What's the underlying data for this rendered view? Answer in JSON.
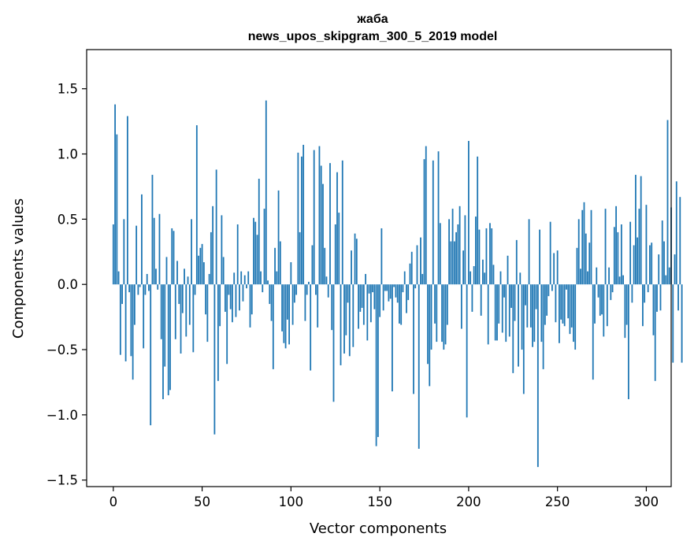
{
  "chart_data": {
    "type": "bar",
    "title_lines": [
      "жаба",
      "news_upos_skipgram_300_5_2019 model"
    ],
    "xlabel": "Vector components",
    "ylabel": "Components values",
    "xlim": [
      -15,
      314
    ],
    "ylim": [
      -1.55,
      1.8
    ],
    "xticks": [
      {
        "value": 0,
        "label": "0"
      },
      {
        "value": 50,
        "label": "50"
      },
      {
        "value": 100,
        "label": "100"
      },
      {
        "value": 150,
        "label": "150"
      },
      {
        "value": 200,
        "label": "200"
      },
      {
        "value": 250,
        "label": "250"
      },
      {
        "value": 300,
        "label": "300"
      }
    ],
    "yticks": [
      {
        "value": -1.5,
        "label": "−1.5"
      },
      {
        "value": -1.0,
        "label": "−1.0"
      },
      {
        "value": -0.5,
        "label": "−0.5"
      },
      {
        "value": 0.0,
        "label": "0.0"
      },
      {
        "value": 0.5,
        "label": "0.5"
      },
      {
        "value": 1.0,
        "label": "1.0"
      },
      {
        "value": 1.5,
        "label": "1.5"
      }
    ],
    "grid": false,
    "bar_color": "#1f77b4",
    "values": [
      0.46,
      1.38,
      1.15,
      0.1,
      -0.54,
      -0.15,
      0.5,
      -0.59,
      1.29,
      -0.06,
      -0.55,
      -0.73,
      -0.31,
      0.45,
      -0.08,
      -0.02,
      0.69,
      -0.49,
      -0.08,
      0.08,
      -0.05,
      -1.08,
      0.84,
      0.51,
      0.12,
      -0.04,
      0.54,
      -0.42,
      -0.88,
      -0.63,
      0.21,
      -0.85,
      -0.81,
      0.43,
      0.41,
      -0.42,
      0.18,
      -0.15,
      -0.53,
      -0.22,
      0.12,
      -0.4,
      0.06,
      -0.31,
      0.5,
      -0.52,
      -0.08,
      1.22,
      0.22,
      0.28,
      0.31,
      0.17,
      -0.23,
      -0.44,
      0.08,
      0.4,
      0.6,
      -1.15,
      0.88,
      -0.74,
      -0.32,
      0.53,
      0.21,
      -0.21,
      -0.61,
      -0.08,
      -0.19,
      -0.29,
      0.09,
      -0.25,
      0.46,
      -0.2,
      0.1,
      -0.13,
      0.07,
      -0.03,
      0.1,
      -0.33,
      -0.23,
      0.51,
      0.48,
      0.38,
      0.81,
      0.1,
      -0.06,
      0.58,
      1.41,
      0.03,
      -0.15,
      -0.28,
      -0.65,
      0.28,
      0.1,
      0.72,
      0.33,
      -0.36,
      -0.45,
      -0.49,
      -0.27,
      -0.46,
      0.17,
      -0.31,
      -0.14,
      -0.08,
      1.01,
      0.4,
      0.98,
      1.07,
      -0.28,
      -0.08,
      0.02,
      -0.66,
      0.3,
      1.03,
      -0.08,
      -0.33,
      1.06,
      0.91,
      0.77,
      0.28,
      0.06,
      -0.1,
      0.93,
      -0.35,
      -0.9,
      0.46,
      0.86,
      0.55,
      -0.62,
      0.95,
      -0.53,
      -0.39,
      -0.14,
      -0.55,
      0.26,
      -0.48,
      0.39,
      0.35,
      -0.34,
      -0.21,
      -0.18,
      -0.31,
      0.08,
      -0.43,
      -0.07,
      -0.29,
      -0.06,
      -0.19,
      -1.24,
      -1.17,
      -0.25,
      0.43,
      -0.2,
      -0.05,
      -0.05,
      -0.13,
      -0.11,
      -0.82,
      -0.02,
      -0.1,
      -0.14,
      -0.3,
      -0.31,
      -0.06,
      0.1,
      -0.22,
      -0.12,
      0.16,
      0.25,
      -0.84,
      -0.03,
      0.3,
      -1.26,
      0.36,
      0.08,
      0.96,
      1.06,
      -0.61,
      -0.78,
      -0.5,
      0.95,
      -0.3,
      -0.44,
      1.02,
      0.47,
      -0.44,
      -0.5,
      -0.46,
      -0.31,
      0.5,
      0.33,
      0.58,
      0.33,
      0.4,
      0.46,
      0.6,
      -0.34,
      0.26,
      0.53,
      -1.02,
      1.1,
      0.1,
      -0.21,
      0.14,
      0.52,
      0.98,
      0.42,
      -0.24,
      0.19,
      0.09,
      0.43,
      -0.46,
      0.47,
      0.43,
      0.15,
      -0.43,
      -0.43,
      -0.3,
      0.1,
      -0.37,
      -0.1,
      -0.44,
      0.22,
      -0.4,
      -0.18,
      -0.68,
      -0.28,
      0.34,
      -0.63,
      0.09,
      -0.5,
      -0.84,
      -0.16,
      -0.33,
      0.5,
      -0.33,
      -0.48,
      -0.44,
      -0.19,
      -1.4,
      0.42,
      -0.44,
      -0.65,
      -0.31,
      -0.24,
      -0.09,
      0.48,
      -0.05,
      0.24,
      -0.29,
      0.26,
      -0.45,
      -0.27,
      -0.3,
      -0.32,
      -0.04,
      -0.26,
      -0.38,
      -0.33,
      -0.44,
      -0.5,
      0.28,
      0.5,
      0.12,
      0.57,
      0.63,
      0.39,
      0.1,
      0.32,
      0.57,
      -0.73,
      -0.3,
      0.13,
      -0.1,
      -0.24,
      -0.23,
      -0.4,
      0.58,
      -0.32,
      0.13,
      -0.12,
      -0.06,
      0.44,
      0.6,
      0.4,
      0.06,
      0.46,
      0.07,
      -0.41,
      -0.31,
      -0.88,
      0.48,
      -0.14,
      0.3,
      0.84,
      0.36,
      0.58,
      0.83,
      -0.32,
      -0.14,
      0.61,
      -0.06,
      0.3,
      0.32,
      -0.39,
      -0.74,
      -0.21,
      0.23,
      -0.2,
      0.49,
      0.33,
      0.07,
      1.26,
      0.13,
      0.59,
      -0.6,
      0.23,
      0.79,
      -0.2,
      0.67,
      -0.6
    ]
  }
}
